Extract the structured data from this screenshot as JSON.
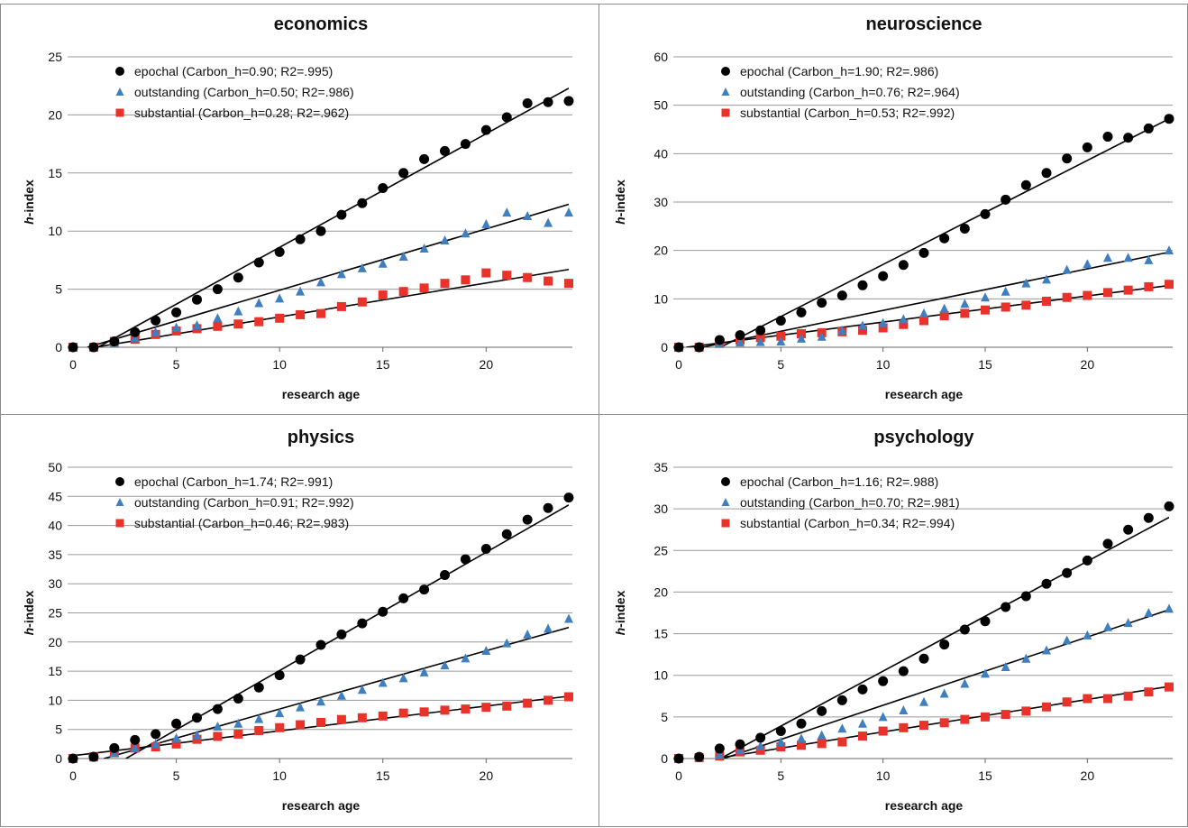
{
  "chart_data": [
    {
      "type": "scatter",
      "title": "economics",
      "xlabel": "research age",
      "ylabel_prefix": "h",
      "ylabel_suffix": "-index",
      "xlim": [
        0,
        24
      ],
      "ylim": [
        0,
        25
      ],
      "xticks": [
        0,
        5,
        10,
        15,
        20
      ],
      "yticks": [
        0,
        5,
        10,
        15,
        20,
        25
      ],
      "grid": true,
      "legend_position": "top-left",
      "x": [
        0,
        1,
        2,
        3,
        4,
        5,
        6,
        7,
        8,
        9,
        10,
        11,
        12,
        13,
        14,
        15,
        16,
        17,
        18,
        19,
        20,
        21,
        22,
        23,
        24
      ],
      "series": [
        {
          "name": "epochal (Carbon_h=0.90; R2=.995)",
          "marker": "circle",
          "color": "#000000",
          "values": [
            0,
            0,
            0.5,
            1.3,
            2.3,
            3.0,
            4.1,
            5.0,
            6.0,
            7.3,
            8.2,
            9.3,
            10.0,
            11.4,
            12.4,
            13.7,
            15.0,
            16.2,
            16.9,
            17.5,
            18.7,
            19.8,
            21.0,
            21.1,
            21.2
          ],
          "fit": {
            "slope": 0.978,
            "intercept": -1.18
          }
        },
        {
          "name": "outstanding (Carbon_h=0.50; R2=.986)",
          "marker": "triangle",
          "color": "#3f7fbf",
          "values": [
            0,
            0,
            0.4,
            0.8,
            1.3,
            1.7,
            1.9,
            2.5,
            3.1,
            3.8,
            4.2,
            4.8,
            5.6,
            6.3,
            6.8,
            7.2,
            7.8,
            8.5,
            9.2,
            9.8,
            10.6,
            11.6,
            11.3,
            10.7,
            11.6
          ],
          "fit": {
            "slope": 0.528,
            "intercept": -0.37
          }
        },
        {
          "name": "substantial (Carbon_h=0.28; R2=.962)",
          "marker": "square",
          "color": "#e8322a",
          "values": [
            0,
            0,
            0.5,
            0.7,
            1.1,
            1.4,
            1.6,
            1.8,
            2.0,
            2.2,
            2.5,
            2.8,
            2.9,
            3.5,
            3.9,
            4.5,
            4.8,
            5.1,
            5.5,
            5.8,
            6.4,
            6.2,
            6.0,
            5.7,
            5.5
          ],
          "fit": {
            "slope": 0.292,
            "intercept": -0.31
          }
        }
      ]
    },
    {
      "type": "scatter",
      "title": "neuroscience",
      "xlabel": "research age",
      "ylabel_prefix": "h",
      "ylabel_suffix": "-index",
      "xlim": [
        0,
        24
      ],
      "ylim": [
        0,
        60
      ],
      "xticks": [
        0,
        5,
        10,
        15,
        20
      ],
      "yticks": [
        0,
        10,
        20,
        30,
        40,
        50,
        60
      ],
      "grid": true,
      "legend_position": "top-left",
      "x": [
        0,
        1,
        2,
        3,
        4,
        5,
        6,
        7,
        8,
        9,
        10,
        11,
        12,
        13,
        14,
        15,
        16,
        17,
        18,
        19,
        20,
        21,
        22,
        23,
        24
      ],
      "series": [
        {
          "name": "epochal (Carbon_h=1.90; R2=.986)",
          "marker": "circle",
          "color": "#000000",
          "values": [
            0,
            0,
            1.5,
            2.5,
            3.5,
            5.5,
            7.2,
            9.2,
            10.7,
            12.8,
            14.7,
            17.0,
            19.5,
            22.5,
            24.5,
            27.5,
            30.5,
            33.5,
            36.0,
            39.0,
            41.3,
            43.5,
            43.3,
            45.2,
            47.2
          ],
          "fit": {
            "slope": 2.15,
            "intercept": -4.4
          }
        },
        {
          "name": "outstanding (Carbon_h=0.76; R2=.964)",
          "marker": "triangle",
          "color": "#3f7fbf",
          "values": [
            0,
            0,
            0.8,
            1.0,
            1.1,
            1.2,
            1.8,
            2.2,
            3.5,
            4.5,
            5.0,
            5.8,
            7.0,
            8.0,
            9.0,
            10.3,
            11.5,
            13.2,
            14.0,
            16.0,
            17.2,
            18.5,
            18.5,
            18.0,
            20.0
          ],
          "fit": {
            "slope": 0.86,
            "intercept": -1.0
          }
        },
        {
          "name": "substantial (Carbon_h=0.53; R2=.992)",
          "marker": "square",
          "color": "#e8322a",
          "values": [
            0,
            0,
            0.8,
            1.5,
            2.0,
            2.3,
            2.8,
            3.0,
            3.2,
            3.5,
            4.0,
            4.7,
            5.5,
            6.5,
            7.0,
            7.7,
            8.3,
            8.7,
            9.5,
            10.3,
            10.7,
            11.3,
            11.8,
            12.5,
            13.0
          ],
          "fit": {
            "slope": 0.54,
            "intercept": -0.2
          }
        }
      ]
    },
    {
      "type": "scatter",
      "title": "physics",
      "xlabel": "research age",
      "ylabel_prefix": "h",
      "ylabel_suffix": "-index",
      "xlim": [
        0,
        24
      ],
      "ylim": [
        0,
        50
      ],
      "xticks": [
        0,
        5,
        10,
        15,
        20
      ],
      "yticks": [
        0,
        5,
        10,
        15,
        20,
        25,
        30,
        35,
        40,
        45,
        50
      ],
      "grid": true,
      "legend_position": "top-left",
      "x": [
        0,
        1,
        2,
        3,
        4,
        5,
        6,
        7,
        8,
        9,
        10,
        11,
        12,
        13,
        14,
        15,
        16,
        17,
        18,
        19,
        20,
        21,
        22,
        23,
        24
      ],
      "series": [
        {
          "name": "epochal (Carbon_h=1.74; R2=.991)",
          "marker": "circle",
          "color": "#000000",
          "values": [
            0,
            0.3,
            1.8,
            3.2,
            4.2,
            6.0,
            7.0,
            8.5,
            10.3,
            12.2,
            14.3,
            17.0,
            19.5,
            21.3,
            23.2,
            25.2,
            27.5,
            29.0,
            31.5,
            34.2,
            36.0,
            38.5,
            41.0,
            43.0,
            44.8
          ],
          "fit": {
            "slope": 2.03,
            "intercept": -5.2
          }
        },
        {
          "name": "outstanding (Carbon_h=0.91; R2=.992)",
          "marker": "triangle",
          "color": "#3f7fbf",
          "values": [
            0,
            0.2,
            1.0,
            1.8,
            2.5,
            3.5,
            4.0,
            5.5,
            6.0,
            6.8,
            7.8,
            8.8,
            9.8,
            10.8,
            11.8,
            13.0,
            13.8,
            14.8,
            16.0,
            17.2,
            18.5,
            19.8,
            21.3,
            22.3,
            24.0
          ],
          "fit": {
            "slope": 1.0,
            "intercept": -1.5
          }
        },
        {
          "name": "substantial (Carbon_h=0.46; R2=.983)",
          "marker": "square",
          "color": "#e8322a",
          "values": [
            0,
            0.3,
            1.0,
            1.8,
            2.0,
            2.5,
            3.3,
            3.8,
            4.2,
            4.8,
            5.3,
            5.8,
            6.2,
            6.7,
            7.0,
            7.3,
            7.8,
            8.0,
            8.3,
            8.5,
            8.8,
            9.0,
            9.5,
            10.0,
            10.6
          ],
          "fit": {
            "slope": 0.425,
            "intercept": 0.5
          }
        }
      ]
    },
    {
      "type": "scatter",
      "title": "psychology",
      "xlabel": "research age",
      "ylabel_prefix": "h",
      "ylabel_suffix": "-index",
      "xlim": [
        0,
        24
      ],
      "ylim": [
        0,
        35
      ],
      "xticks": [
        0,
        5,
        10,
        15,
        20
      ],
      "yticks": [
        0,
        5,
        10,
        15,
        20,
        25,
        30,
        35
      ],
      "grid": true,
      "legend_position": "top-left",
      "x": [
        0,
        1,
        2,
        3,
        4,
        5,
        6,
        7,
        8,
        9,
        10,
        11,
        12,
        13,
        14,
        15,
        16,
        17,
        18,
        19,
        20,
        21,
        22,
        23,
        24
      ],
      "series": [
        {
          "name": "epochal (Carbon_h=1.16; R2=.988)",
          "marker": "circle",
          "color": "#000000",
          "values": [
            0,
            0.2,
            1.2,
            1.7,
            2.5,
            3.3,
            4.2,
            5.7,
            7.0,
            8.3,
            9.3,
            10.5,
            12.0,
            13.7,
            15.5,
            16.5,
            18.2,
            19.5,
            21.0,
            22.3,
            23.8,
            25.8,
            27.5,
            28.9,
            30.3
          ],
          "fit": {
            "slope": 1.32,
            "intercept": -2.7
          }
        },
        {
          "name": "outstanding (Carbon_h=0.70; R2=.981)",
          "marker": "triangle",
          "color": "#3f7fbf",
          "values": [
            0,
            0.1,
            0.5,
            1.0,
            1.5,
            2.0,
            2.4,
            2.8,
            3.6,
            4.2,
            5.0,
            5.8,
            6.8,
            7.8,
            9.0,
            10.2,
            11.0,
            12.0,
            13.0,
            14.2,
            14.8,
            15.8,
            16.3,
            17.5,
            18.0
          ],
          "fit": {
            "slope": 0.82,
            "intercept": -1.8
          }
        },
        {
          "name": "substantial (Carbon_h=0.34; R2=.994)",
          "marker": "square",
          "color": "#e8322a",
          "values": [
            0,
            0.1,
            0.3,
            0.8,
            1.0,
            1.4,
            1.6,
            1.8,
            2.0,
            2.7,
            3.3,
            3.7,
            4.0,
            4.3,
            4.7,
            5.0,
            5.3,
            5.7,
            6.2,
            6.8,
            7.2,
            7.2,
            7.5,
            8.0,
            8.6
          ],
          "fit": {
            "slope": 0.39,
            "intercept": -0.7
          }
        }
      ]
    }
  ]
}
